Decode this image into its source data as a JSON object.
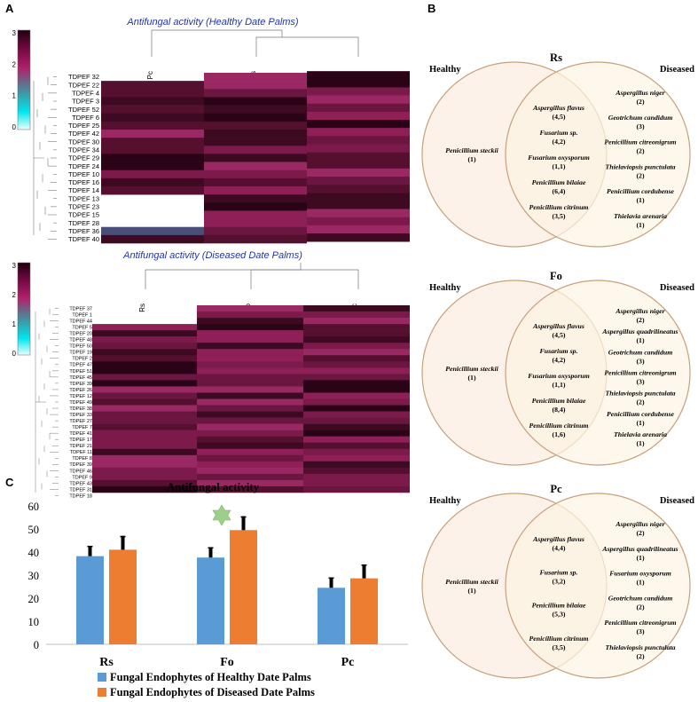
{
  "panels": {
    "A": "A",
    "B": "B",
    "C": "C"
  },
  "heatmap_healthy": {
    "title": "Antifungal activity (Healthy Date Palms)",
    "columns": [
      "Pc",
      "Rs",
      "Fo"
    ],
    "rows": [
      "TDPEF 32",
      "TDPEF 22",
      "TDPEF 4",
      "TDPEF 3",
      "TDPEF 52",
      "TDPEF 6",
      "TDPEF 25",
      "TDPEF 42",
      "TDPEF 30",
      "TDPEF 34",
      "TDPEF 29",
      "TDPEF 24",
      "TDPEF 10",
      "TDPEF 16",
      "TDPEF 14",
      "TDPEF 13",
      "TDPEF 23",
      "TDPEF 15",
      "TDPEF 28",
      "TDPEF 36",
      "TDPEF 40"
    ],
    "scale_ticks": [
      "3",
      "2",
      "1",
      "0"
    ]
  },
  "heatmap_diseased": {
    "title": "Antifungal activity (Diseased Date Palms)",
    "columns": [
      "Rs",
      "Fo",
      "Pc"
    ],
    "rows": [
      "TDPEF 37",
      "TDPEF 1",
      "TDPEF 44",
      "TDPEF 5",
      "TDPEF 20",
      "TDPEF 48",
      "TDPEF 50",
      "TDPEF 19",
      "TDPEF 2",
      "TDPEF 47",
      "TDPEF 51",
      "TDPEF 45",
      "TDPEF 39",
      "TDPEF 26",
      "TDPEF 12",
      "TDPEF 49",
      "TDPEF 38",
      "TDPEF 33",
      "TDPEF 27",
      "TDPEF 7",
      "TDPEF 41",
      "TDPEF 17",
      "TDPEF 21",
      "TDPEF 11",
      "TDPEF 8",
      "TDPEF 39",
      "TDPEF 46",
      "TDPEF 9",
      "TDPEF 43",
      "TDPEF 31",
      "TDPEF 18"
    ],
    "scale_ticks": [
      "3",
      "2",
      "1",
      "0"
    ]
  },
  "chart_data": {
    "type": "bar",
    "title": "Antifungal activity",
    "categories": [
      "Rs",
      "Fo",
      "Pc"
    ],
    "series": [
      {
        "name": "Fungal Endophytes of Healthy Date Palms",
        "values": [
          38.2,
          37.6,
          24.5
        ],
        "errors": [
          4.5,
          4.5,
          4.5
        ],
        "color": "#5b9bd5"
      },
      {
        "name": "Fungal Endophytes of Diseased Date Palms",
        "values": [
          41.0,
          49.5,
          28.6
        ],
        "errors": [
          6.0,
          6.0,
          6.0
        ],
        "color": "#ed7d31"
      }
    ],
    "ylim": [
      0,
      60
    ],
    "yticks": [
      "0",
      "10",
      "20",
      "30",
      "40",
      "50",
      "60"
    ],
    "grid": false,
    "legend": "bottom",
    "annotation": "star-above-Fo"
  },
  "venns": [
    {
      "title": "Rs",
      "left_label": "Healthy",
      "right_label": "Diseased",
      "left_only": [
        [
          "Penicillium steckii",
          "(1)"
        ]
      ],
      "overlap": [
        [
          "Aspergillus flavus",
          "(4,5)"
        ],
        [
          "Fusarium sp.",
          "(4,2)"
        ],
        [
          "Fusarium oxysporum",
          "(1,1)"
        ],
        [
          "Penicillium bilaiae",
          "(6,4)"
        ],
        [
          "Penicillium citrinum",
          "(3,5)"
        ]
      ],
      "right_only": [
        [
          "Aspergillus niger",
          "(2)"
        ],
        [
          "Geotrichum candidum",
          "(3)"
        ],
        [
          "Penicillium citreonigrum",
          "(2)"
        ],
        [
          "Thielaviopsis punctulata",
          "(2)"
        ],
        [
          "Penicillium cordubense",
          "(1)"
        ],
        [
          "Thielavia arenaria",
          "(1)"
        ]
      ]
    },
    {
      "title": "Fo",
      "left_label": "Healthy",
      "right_label": "Diseased",
      "left_only": [
        [
          "Penicillium steckii",
          "(1)"
        ]
      ],
      "overlap": [
        [
          "Aspergillus flavus",
          "(4,5)"
        ],
        [
          "Fusarium sp.",
          "(4,2)"
        ],
        [
          "Fusarium oxysporum",
          "(1,1)"
        ],
        [
          "Penicillium bilaiae",
          "(8,4)"
        ],
        [
          "Penicillium citrinum",
          "(1,6)"
        ]
      ],
      "right_only": [
        [
          "Aspergillus niger",
          "(2)"
        ],
        [
          "Aspergillus quadrilineatus",
          "(1)"
        ],
        [
          "Geotrichum candidum",
          "(3)"
        ],
        [
          "Penicillium citreonigrum",
          "(3)"
        ],
        [
          "Thielaviopsis punctulata",
          "(2)"
        ],
        [
          "Penicillium cordubense",
          "(1)"
        ],
        [
          "Thielavia arenaria",
          "(1)"
        ]
      ]
    },
    {
      "title": "Pc",
      "left_label": "Healthy",
      "right_label": "Diseased",
      "left_only": [
        [
          "Penicillium steckii",
          "(1)"
        ]
      ],
      "overlap": [
        [
          "Aspergillus flavus",
          "(4,4)"
        ],
        [
          "Fusarium sp.",
          "(3,2)"
        ],
        [
          "Penicillium bilaiae",
          "(5,3)"
        ],
        [
          "Penicillium citrinum",
          "(3,5)"
        ]
      ],
      "right_only": [
        [
          "Aspergillus niger",
          "(2)"
        ],
        [
          "Aspergillus quadrilineatus",
          "(1)"
        ],
        [
          "Fusarium oxysporum",
          "(1)"
        ],
        [
          "Geotrichum candidum",
          "(2)"
        ],
        [
          "Penicillium citreonigrum",
          "(3)"
        ],
        [
          "Thielaviopsis punctulata",
          "(2)"
        ]
      ]
    }
  ]
}
